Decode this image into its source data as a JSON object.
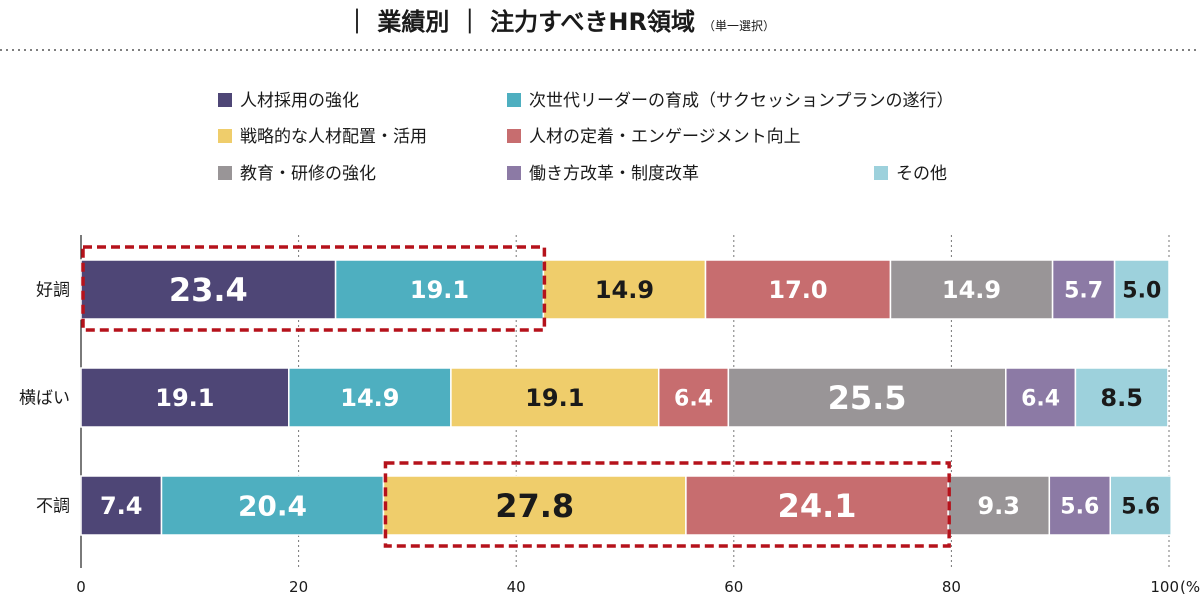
{
  "header": {
    "title_prefix": "｜ 業績別 ｜ ",
    "title_main": "注力すべきHR領域",
    "title_note": "（単一選択）"
  },
  "chart_data": {
    "type": "bar",
    "orientation": "horizontal",
    "stacked": true,
    "categories": [
      "好調",
      "横ばい",
      "不調"
    ],
    "series": [
      {
        "name": "人材採用の強化",
        "color": "#4e4676",
        "label_color": "#ffffff",
        "values": [
          23.4,
          19.1,
          7.4
        ]
      },
      {
        "name": "次世代リーダーの育成（サクセッションプランの遂行）",
        "color": "#4eafc0",
        "label_color": "#ffffff",
        "values": [
          19.1,
          14.9,
          20.4
        ]
      },
      {
        "name": "戦略的な人材配置・活用",
        "color": "#efcd6b",
        "label_color": "#1a1a1a",
        "values": [
          14.9,
          19.1,
          27.8
        ]
      },
      {
        "name": "人材の定着・エンゲージメント向上",
        "color": "#c76d6f",
        "label_color": "#ffffff",
        "values": [
          17.0,
          6.4,
          24.1
        ]
      },
      {
        "name": "教育・研修の強化",
        "color": "#999597",
        "label_color": "#ffffff",
        "values": [
          14.9,
          25.5,
          9.3
        ]
      },
      {
        "name": "働き方改革・制度改革",
        "color": "#8c7aa5",
        "label_color": "#ffffff",
        "values": [
          5.7,
          6.4,
          5.6
        ]
      },
      {
        "name": "その他",
        "color": "#9dd1dc",
        "label_color": "#1a1a1a",
        "values": [
          5.0,
          8.5,
          5.6
        ]
      }
    ],
    "xlim": [
      0,
      100
    ],
    "xticks": [
      "0",
      "20",
      "40",
      "60",
      "80",
      "100"
    ],
    "x_unit": "(%)",
    "grid": "vertical-dotted",
    "legend_position": "top",
    "highlights": [
      {
        "category": "好調",
        "series": [
          "人材採用の強化",
          "次世代リーダーの育成（サクセッションプランの遂行）"
        ]
      },
      {
        "category": "不調",
        "series": [
          "戦略的な人材配置・活用",
          "人材の定着・エンゲージメント向上"
        ]
      }
    ]
  }
}
